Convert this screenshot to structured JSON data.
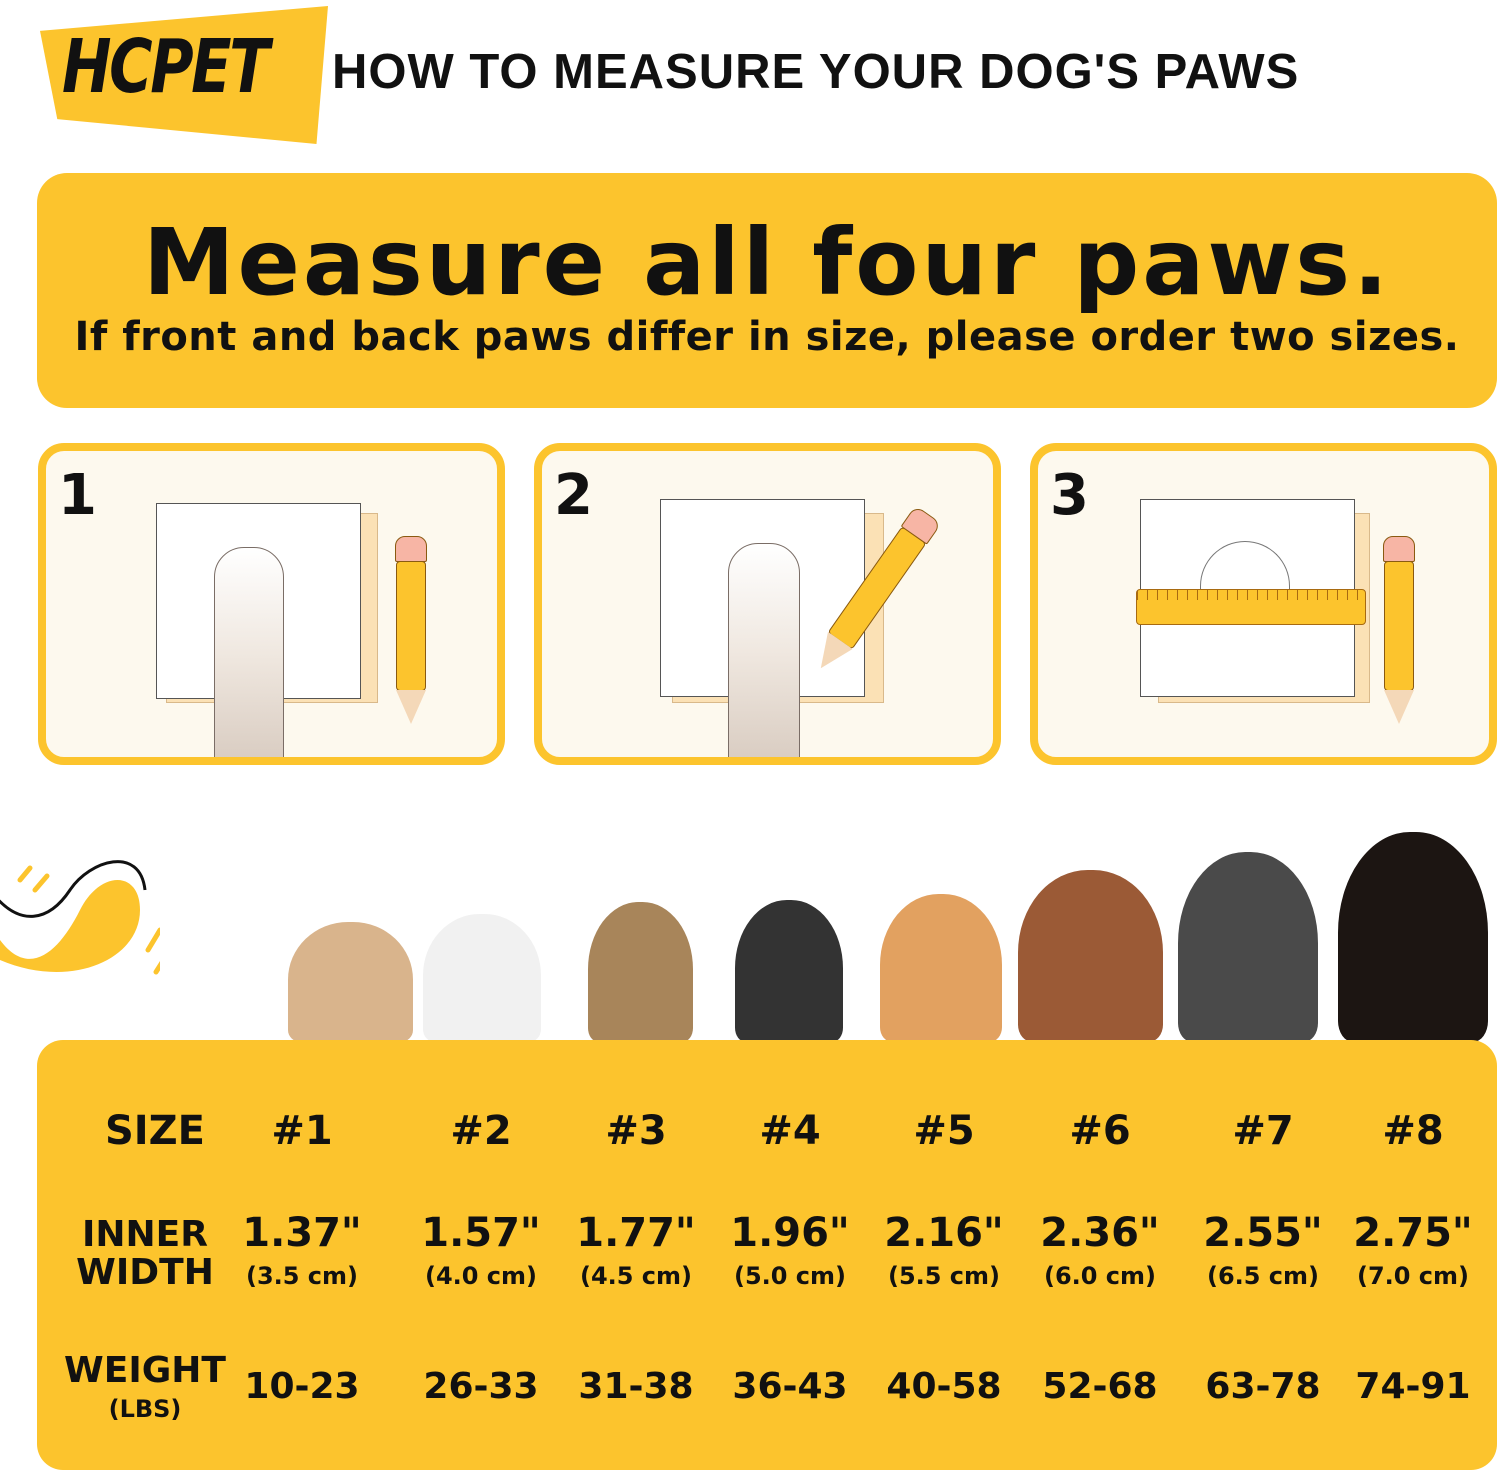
{
  "brand": {
    "logo": "HCPET",
    "accent": "#fcc42d"
  },
  "header": {
    "title": "HOW TO MEASURE YOUR DOG'S PAWS"
  },
  "banner": {
    "heading": "Measure all four paws.",
    "subtitle": "If front and back paws differ in size, please order two sizes."
  },
  "steps": [
    {
      "number": "1"
    },
    {
      "number": "2"
    },
    {
      "number": "3"
    }
  ],
  "size_table": {
    "labels": {
      "size": "SIZE",
      "inner_width_1": "INNER",
      "inner_width_2": "WIDTH",
      "weight": "WEIGHT",
      "weight_unit": "(LBS)"
    },
    "sizes": [
      {
        "size": "#1",
        "inches": "1.37\"",
        "cm": "(3.5 cm)",
        "weight": "10-23"
      },
      {
        "size": "#2",
        "inches": "1.57\"",
        "cm": "(4.0 cm)",
        "weight": "26-33"
      },
      {
        "size": "#3",
        "inches": "1.77\"",
        "cm": "(4.5 cm)",
        "weight": "31-38"
      },
      {
        "size": "#4",
        "inches": "1.96\"",
        "cm": "(5.0 cm)",
        "weight": "36-43"
      },
      {
        "size": "#5",
        "inches": "2.16\"",
        "cm": "(5.5 cm)",
        "weight": "40-58"
      },
      {
        "size": "#6",
        "inches": "2.36\"",
        "cm": "(6.0 cm)",
        "weight": "52-68"
      },
      {
        "size": "#7",
        "inches": "2.55\"",
        "cm": "(6.5 cm)",
        "weight": "63-78"
      },
      {
        "size": "#8",
        "inches": "2.75\"",
        "cm": "(7.0 cm)",
        "weight": "74-91"
      }
    ]
  }
}
